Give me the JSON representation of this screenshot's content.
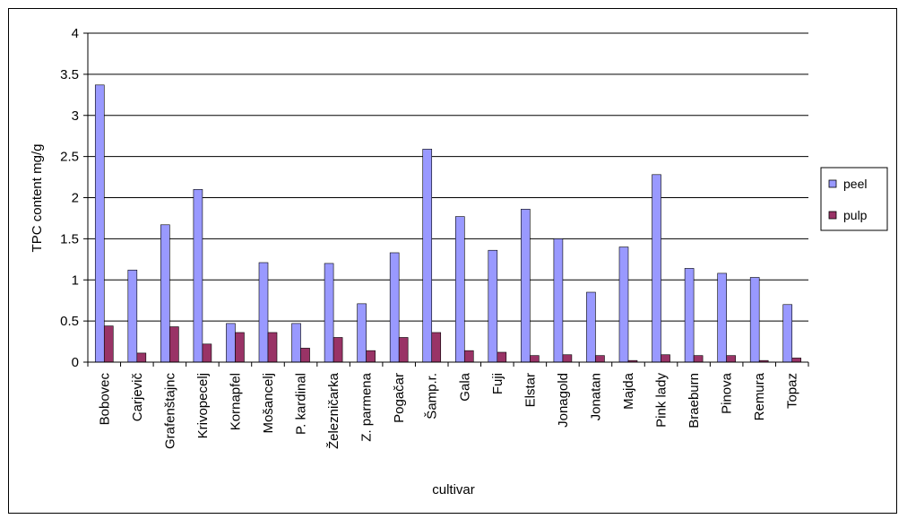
{
  "chart_data": {
    "type": "bar",
    "xlabel": "cultivar",
    "ylabel": "TPC content mg/g",
    "ylim": [
      0,
      4
    ],
    "yticks": [
      0,
      0.5,
      1,
      1.5,
      2,
      2.5,
      3,
      3.5,
      4
    ],
    "ytick_labels": [
      "0",
      "0.5",
      "1",
      "1.5",
      "2",
      "2.5",
      "3",
      "3.5",
      "4"
    ],
    "grid": true,
    "legend_position": "right",
    "categories": [
      "Bobovec",
      "Carjevič",
      "Grafenštajnc",
      "Krivopecelj",
      "Kornapfel",
      "Mošancelj",
      "P. kardinal",
      "Železničarka",
      "Z. parmena",
      "Pogačar",
      "Šamp.r.",
      "Gala",
      "Fuji",
      "Elstar",
      "Jonagold",
      "Jonatan",
      "Majda",
      "Pink lady",
      "Braeburn",
      "Pinova",
      "Remura",
      "Topaz"
    ],
    "series": [
      {
        "name": "peel",
        "color": "#9999ff",
        "values": [
          3.37,
          1.12,
          1.67,
          2.1,
          0.47,
          1.21,
          0.47,
          1.2,
          0.71,
          1.33,
          2.59,
          1.77,
          1.36,
          1.86,
          1.5,
          0.85,
          1.4,
          2.28,
          1.14,
          1.08,
          1.03,
          0.7
        ]
      },
      {
        "name": "pulp",
        "color": "#993366",
        "values": [
          0.44,
          0.11,
          0.43,
          0.22,
          0.36,
          0.36,
          0.17,
          0.3,
          0.14,
          0.3,
          0.36,
          0.14,
          0.12,
          0.08,
          0.09,
          0.08,
          0.02,
          0.09,
          0.08,
          0.08,
          0.02,
          0.05
        ]
      }
    ]
  }
}
